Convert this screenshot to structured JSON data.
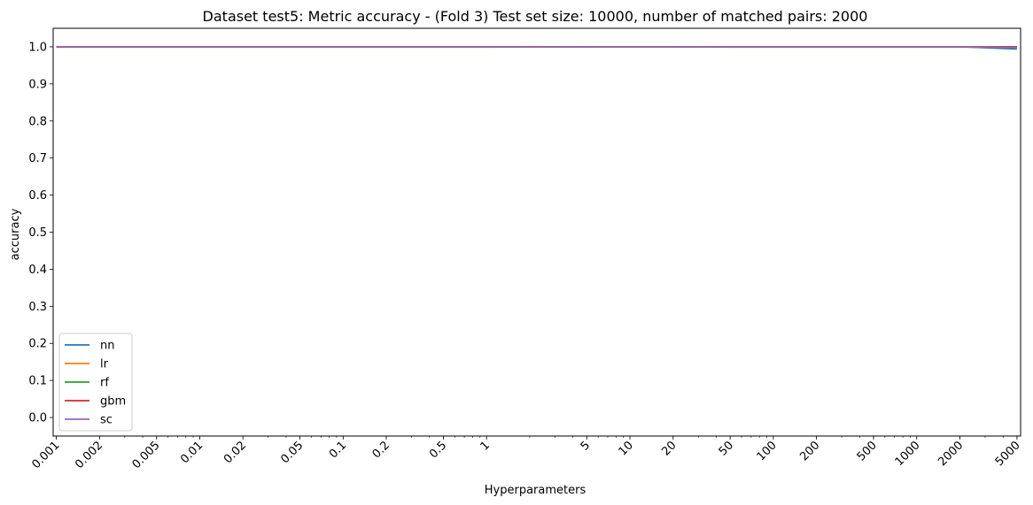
{
  "chart_data": {
    "type": "line",
    "title": "Dataset test5: Metric accuracy - (Fold 3) Test set size: 10000, number of matched pairs: 2000",
    "xlabel": "Hyperparameters",
    "ylabel": "accuracy",
    "x_scale": "log",
    "xlim": [
      0.00095,
      5300
    ],
    "ylim": [
      -0.05,
      1.05
    ],
    "grid": false,
    "legend_position": "lower-left",
    "x": [
      0.001,
      0.002,
      0.005,
      0.01,
      0.02,
      0.05,
      0.1,
      0.2,
      0.5,
      1,
      5,
      10,
      20,
      50,
      100,
      200,
      500,
      1000,
      2000,
      5000
    ],
    "x_tick_labels": [
      "0.001",
      "0.002",
      "0.005",
      "0.01",
      "0.02",
      "0.05",
      "0.1",
      "0.2",
      "0.5",
      "1",
      "5",
      "10",
      "20",
      "50",
      "100",
      "200",
      "500",
      "1000",
      "2000",
      "5000"
    ],
    "y_ticks": [
      0.0,
      0.1,
      0.2,
      0.3,
      0.4,
      0.5,
      0.6,
      0.7,
      0.8,
      0.9,
      1.0
    ],
    "y_tick_labels": [
      "0.0",
      "0.1",
      "0.2",
      "0.3",
      "0.4",
      "0.5",
      "0.6",
      "0.7",
      "0.8",
      "0.9",
      "1.0"
    ],
    "series": [
      {
        "name": "nn",
        "color": "#1f77b4",
        "values": [
          1.0,
          1.0,
          1.0,
          1.0,
          1.0,
          1.0,
          1.0,
          1.0,
          1.0,
          1.0,
          1.0,
          1.0,
          1.0,
          1.0,
          1.0,
          1.0,
          1.0,
          1.0,
          1.0,
          0.994
        ]
      },
      {
        "name": "lr",
        "color": "#ff7f0e",
        "values": [
          0.999,
          0.999,
          0.999,
          0.999,
          0.999,
          0.999,
          0.999,
          0.999,
          0.999,
          0.999,
          1.0,
          1.0,
          1.0,
          0.999,
          0.999,
          0.999,
          0.999,
          0.999,
          0.999,
          0.999
        ]
      },
      {
        "name": "rf",
        "color": "#2ca02c",
        "values": [
          1.0,
          1.0,
          1.0,
          1.0,
          1.0,
          1.0,
          1.0,
          1.0,
          1.0,
          1.0,
          1.0,
          1.0,
          1.0,
          1.0,
          1.0,
          1.0,
          1.0,
          1.0,
          1.0,
          1.0
        ]
      },
      {
        "name": "gbm",
        "color": "#d62728",
        "values": [
          1.0,
          1.0,
          1.0,
          1.0,
          1.0,
          1.0,
          1.0,
          1.0,
          1.0,
          1.0,
          1.0,
          1.0,
          1.0,
          1.0,
          1.0,
          1.0,
          1.0,
          1.0,
          1.0,
          1.0
        ]
      },
      {
        "name": "sc",
        "color": "#9467bd",
        "values": [
          1.0,
          1.0,
          1.0,
          1.0,
          1.0,
          1.0,
          1.0,
          1.0,
          1.0,
          1.0,
          1.0,
          1.0,
          1.0,
          1.0,
          1.0,
          1.0,
          1.0,
          1.0,
          1.0,
          0.998
        ]
      }
    ]
  }
}
